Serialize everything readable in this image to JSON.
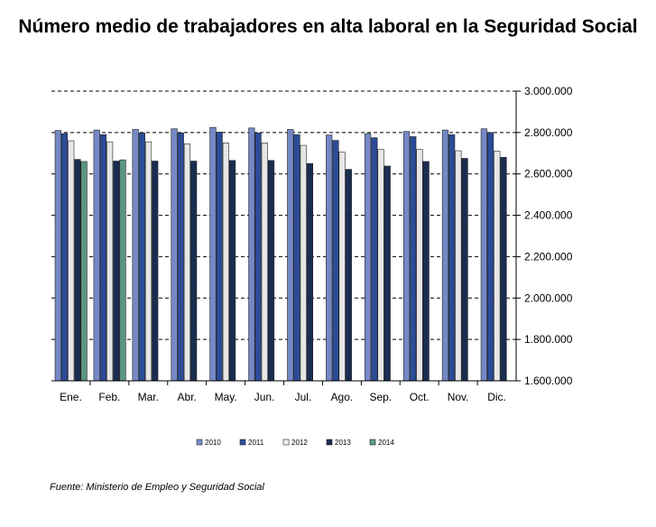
{
  "chart_data": {
    "type": "bar",
    "title": "Número medio de trabajadores en alta laboral en la Seguridad Social",
    "categories": [
      "Ene.",
      "Feb.",
      "Mar.",
      "Abr.",
      "May.",
      "Jun.",
      "Jul.",
      "Ago.",
      "Sep.",
      "Oct.",
      "Nov.",
      "Dic."
    ],
    "series": [
      {
        "name": "2010",
        "color": "#7b8fcf",
        "values": [
          2810000,
          2812000,
          2815000,
          2818000,
          2825000,
          2822000,
          2815000,
          2788000,
          2795000,
          2805000,
          2812000,
          2818000
        ]
      },
      {
        "name": "2011",
        "color": "#2d4f9e",
        "values": [
          2795000,
          2790000,
          2798000,
          2798000,
          2802000,
          2798000,
          2790000,
          2762000,
          2775000,
          2780000,
          2790000,
          2800000
        ]
      },
      {
        "name": "2012",
        "color": "#f2f2f2",
        "values": [
          2760000,
          2755000,
          2755000,
          2745000,
          2750000,
          2750000,
          2738000,
          2705000,
          2718000,
          2718000,
          2712000,
          2710000
        ]
      },
      {
        "name": "2013",
        "color": "#1b2f55",
        "values": [
          2670000,
          2662000,
          2662000,
          2662000,
          2665000,
          2665000,
          2650000,
          2622000,
          2638000,
          2660000,
          2675000,
          2680000
        ]
      },
      {
        "name": "2014",
        "color": "#5f9e86",
        "values": [
          2660000,
          2668000,
          null,
          null,
          null,
          null,
          null,
          null,
          null,
          null,
          null,
          null
        ]
      }
    ],
    "ylim": [
      1600000,
      3000000
    ],
    "yticks": [
      1600000,
      1800000,
      2000000,
      2200000,
      2400000,
      2600000,
      2800000,
      3000000
    ],
    "ytick_labels": [
      "1.600.000",
      "1.800.000",
      "2.000.000",
      "2.200.000",
      "2.400.000",
      "2.600.000",
      "2.800.000",
      "3.000.000"
    ],
    "grid": true,
    "legend_position": "bottom"
  },
  "source_note": "Fuente: Ministerio de Empleo y Seguridad Social"
}
